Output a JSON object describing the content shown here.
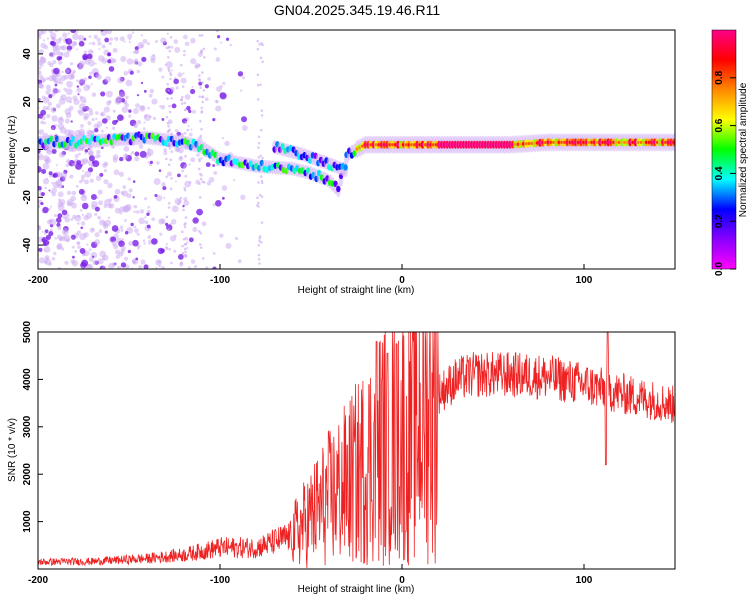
{
  "figure": {
    "title": "GN04.2025.345.19.46.R11"
  },
  "chart_data": [
    {
      "type": "heatmap",
      "xlabel": "Height of straight line (km)",
      "ylabel": "Frequency (Hz)",
      "xlim": [
        -200,
        150
      ],
      "ylim": [
        -50,
        50
      ],
      "xticks": [
        -200,
        -100,
        0,
        100
      ],
      "yticks": [
        -40,
        -20,
        0,
        20,
        40
      ],
      "colorbar": {
        "label": "Normalized spectral amplitude",
        "range": [
          0,
          1
        ],
        "ticks": [
          0.0,
          0.2,
          0.4,
          0.6,
          0.8
        ],
        "colormap": [
          "#ff00ff",
          "#8800ff",
          "#0000ff",
          "#00ffff",
          "#00ff00",
          "#ffff00",
          "#ff8800",
          "#ff0000",
          "#ff0088"
        ]
      },
      "ridge": [
        {
          "x": -200,
          "y": 3
        },
        {
          "x": -180,
          "y": 3
        },
        {
          "x": -160,
          "y": 4
        },
        {
          "x": -140,
          "y": 5
        },
        {
          "x": -120,
          "y": 3
        },
        {
          "x": -110,
          "y": 1
        },
        {
          "x": -100,
          "y": -4
        },
        {
          "x": -80,
          "y": -7
        },
        {
          "x": -60,
          "y": -8
        },
        {
          "x": -50,
          "y": -10
        },
        {
          "x": -40,
          "y": -13
        },
        {
          "x": -35,
          "y": -17
        },
        {
          "x": -30,
          "y": -2
        },
        {
          "x": -20,
          "y": 2
        },
        {
          "x": 0,
          "y": 2
        },
        {
          "x": 20,
          "y": 2
        },
        {
          "x": 40,
          "y": 2
        },
        {
          "x": 60,
          "y": 2
        },
        {
          "x": 80,
          "y": 3
        },
        {
          "x": 100,
          "y": 3
        },
        {
          "x": 120,
          "y": 3
        },
        {
          "x": 150,
          "y": 3
        }
      ],
      "secondary_ridge": [
        {
          "x": -70,
          "y": 1
        },
        {
          "x": -55,
          "y": -2
        },
        {
          "x": -40,
          "y": -6
        },
        {
          "x": -30,
          "y": -9
        }
      ]
    },
    {
      "type": "line",
      "xlabel": "Height of straight line (km)",
      "ylabel": "SNR (10 * v/v)",
      "xlim": [
        -200,
        150
      ],
      "ylim": [
        0,
        5000
      ],
      "xticks": [
        -200,
        -100,
        0,
        100
      ],
      "yticks": [
        1000,
        2000,
        3000,
        4000,
        5000
      ],
      "color": "#ee2222",
      "baseline": [
        {
          "x": -200,
          "y": 150
        },
        {
          "x": -170,
          "y": 160
        },
        {
          "x": -140,
          "y": 220
        },
        {
          "x": -120,
          "y": 300
        },
        {
          "x": -100,
          "y": 450
        },
        {
          "x": -80,
          "y": 450
        },
        {
          "x": -60,
          "y": 700
        },
        {
          "x": -50,
          "y": 1100
        },
        {
          "x": -40,
          "y": 1500
        },
        {
          "x": -30,
          "y": 1800
        },
        {
          "x": -20,
          "y": 2200
        },
        {
          "x": -10,
          "y": 2700
        },
        {
          "x": 0,
          "y": 2900
        },
        {
          "x": 10,
          "y": 3200
        },
        {
          "x": 20,
          "y": 3700
        },
        {
          "x": 30,
          "y": 4000
        },
        {
          "x": 40,
          "y": 4100
        },
        {
          "x": 60,
          "y": 4100
        },
        {
          "x": 80,
          "y": 4050
        },
        {
          "x": 100,
          "y": 3900
        },
        {
          "x": 110,
          "y": 3800
        },
        {
          "x": 120,
          "y": 3700
        },
        {
          "x": 140,
          "y": 3550
        },
        {
          "x": 150,
          "y": 3450
        }
      ],
      "spikes": [
        {
          "x": -14,
          "y": 4800
        },
        {
          "x": -8,
          "y": 4550
        },
        {
          "x": -3,
          "y": 4750
        },
        {
          "x": 2,
          "y": 800
        },
        {
          "x": 112,
          "y": 2200
        },
        {
          "x": 113,
          "y": 5000
        }
      ]
    }
  ]
}
